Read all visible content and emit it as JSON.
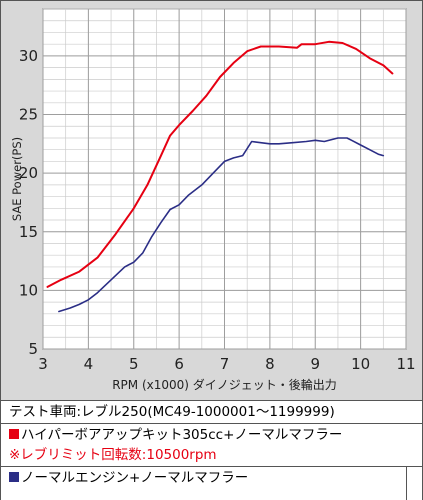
{
  "chart_data": {
    "type": "line",
    "title": "",
    "xlabel": "RPM (x1000) ダイノジェット・後輪出力",
    "ylabel": "SAE Power(PS)",
    "xlim": [
      3,
      11
    ],
    "ylim": [
      5,
      34
    ],
    "xticks": [
      "3",
      "4",
      "5",
      "6",
      "7",
      "8",
      "9",
      "10",
      "11"
    ],
    "yticks": [
      "5",
      "10",
      "15",
      "20",
      "25",
      "30"
    ],
    "grid": true,
    "series": [
      {
        "name": "ハイパーボアアップキット305cc+ノーマルマフラー",
        "color": "#e60012",
        "x": [
          3.1,
          3.4,
          3.8,
          4.2,
          4.6,
          5.0,
          5.3,
          5.6,
          5.8,
          6.0,
          6.3,
          6.6,
          6.9,
          7.2,
          7.5,
          7.8,
          8.2,
          8.6,
          8.7,
          9.0,
          9.3,
          9.6,
          9.9,
          10.2,
          10.5,
          10.7
        ],
        "y": [
          10.3,
          10.9,
          11.6,
          12.8,
          14.8,
          17.0,
          19.0,
          21.5,
          23.2,
          24.1,
          25.3,
          26.6,
          28.2,
          29.4,
          30.4,
          30.8,
          30.8,
          30.7,
          31.0,
          31.0,
          31.2,
          31.1,
          30.6,
          29.8,
          29.2,
          28.5
        ]
      },
      {
        "name": "ノーマルエンジン+ノーマルマフラー",
        "color": "#2b2e86",
        "x": [
          3.35,
          3.6,
          3.8,
          4.0,
          4.2,
          4.5,
          4.8,
          5.0,
          5.2,
          5.4,
          5.6,
          5.8,
          6.0,
          6.2,
          6.5,
          6.8,
          7.0,
          7.2,
          7.4,
          7.6,
          7.8,
          8.0,
          8.2,
          8.5,
          8.8,
          9.0,
          9.2,
          9.5,
          9.7,
          9.8,
          10.0,
          10.2,
          10.4,
          10.5
        ],
        "y": [
          8.2,
          8.5,
          8.8,
          9.2,
          9.8,
          10.9,
          12.0,
          12.4,
          13.2,
          14.6,
          15.8,
          16.9,
          17.3,
          18.1,
          19.0,
          20.2,
          21.0,
          21.3,
          21.5,
          22.7,
          22.6,
          22.5,
          22.5,
          22.6,
          22.7,
          22.8,
          22.7,
          23.0,
          23.0,
          22.8,
          22.4,
          22.0,
          21.6,
          21.5
        ]
      }
    ]
  },
  "legend": {
    "vehicle": "テスト車両:レブル250(MC49-1000001〜1199999)",
    "kit": "ハイパーボアアップキット305cc+ノーマルマフラー",
    "rev_limit": "※レブリミット回転数:10500rpm",
    "normal": "ノーマルエンジン+ノーマルマフラー"
  },
  "colors": {
    "kit": "#e60012",
    "normal": "#2b2e86",
    "plot_bg": "#ffffff",
    "grid": "#9e9e9e",
    "panel_bg": "#d8d8d8"
  }
}
